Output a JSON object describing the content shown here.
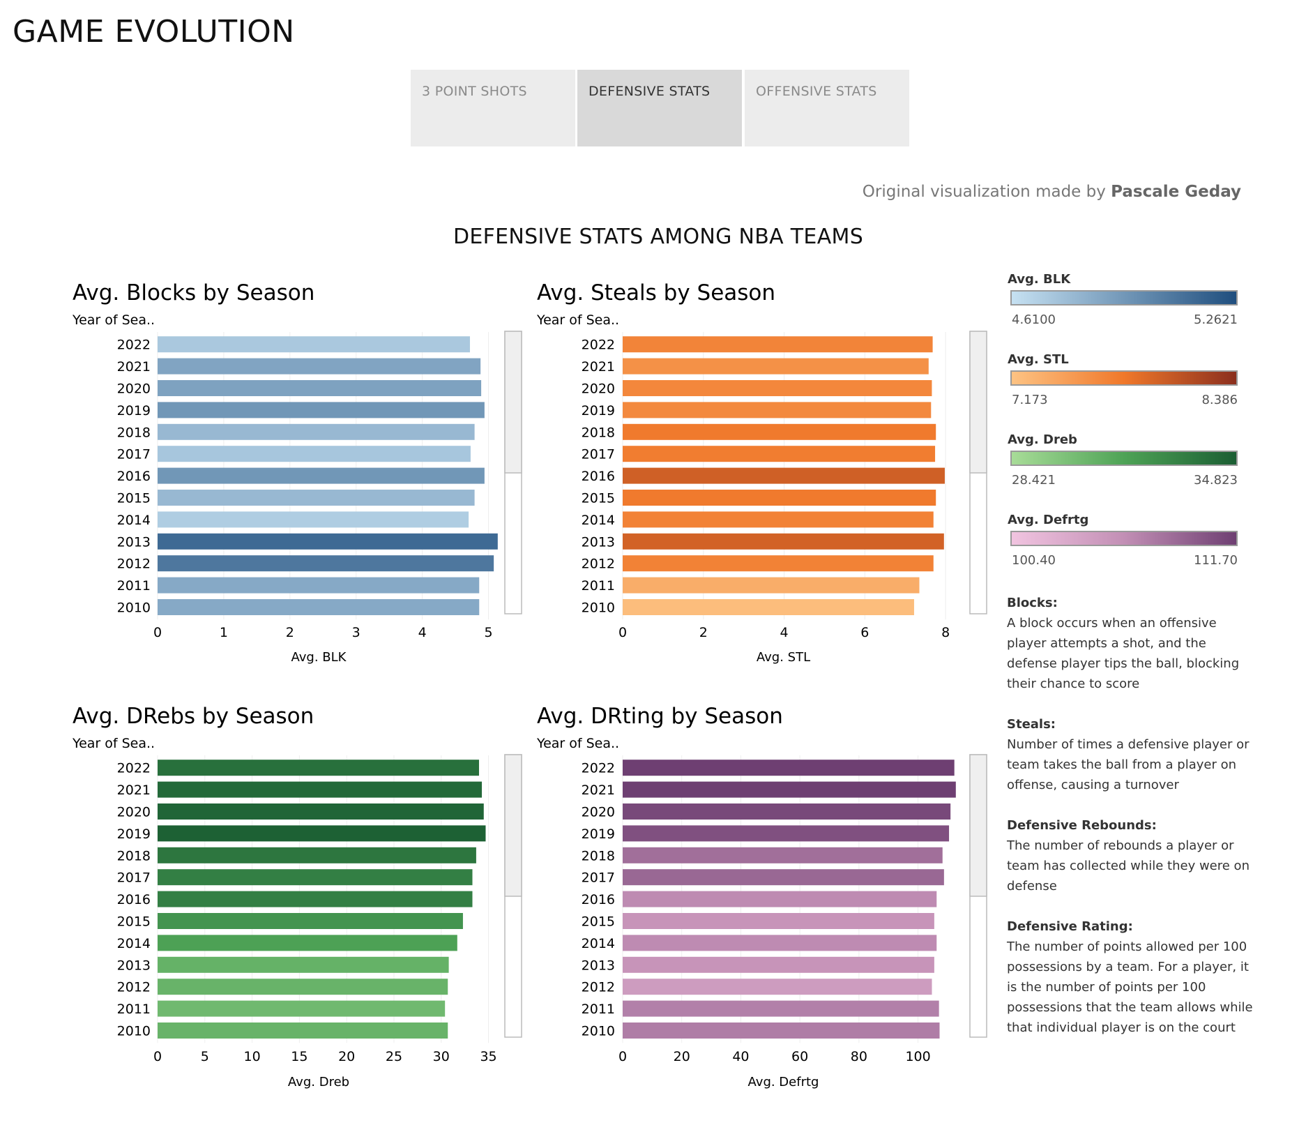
{
  "page": {
    "title": "GAME EVOLUTION",
    "credit_prefix": "Original visualization made by",
    "credit_author": "Pascale Geday",
    "dashboard_title": "DEFENSIVE STATS AMONG NBA TEAMS"
  },
  "tabs": [
    {
      "label": "3 POINT SHOTS",
      "active": false
    },
    {
      "label": "DEFENSIVE STATS",
      "active": true
    },
    {
      "label": "OFFENSIVE STATS",
      "active": false
    }
  ],
  "legends": [
    {
      "title": "Avg. BLK",
      "min": "4.6100",
      "max": "5.2621",
      "colors": [
        "#c6e1f2",
        "#1f4e7e"
      ]
    },
    {
      "title": "Avg. STL",
      "min": "7.173",
      "max": "8.386",
      "colors": [
        "#fdc383",
        "#f0782a",
        "#8b2f1e"
      ]
    },
    {
      "title": "Avg. Dreb",
      "min": "28.421",
      "max": "34.823",
      "colors": [
        "#a8dc98",
        "#4ea356",
        "#1b5e33"
      ]
    },
    {
      "title": "Avg. Defrtg",
      "min": "100.40",
      "max": "111.70",
      "colors": [
        "#f1c4e0",
        "#c28fb5",
        "#6e3f72"
      ]
    }
  ],
  "definitions": [
    {
      "term": "Blocks:",
      "text": "A block occurs when an offensive player attempts a shot, and the defense player tips the ball, blocking their chance to score"
    },
    {
      "term": "Steals:",
      "text": "Number of times a defensive player or team takes the ball from a player on offense, causing a turnover"
    },
    {
      "term": "Defensive Rebounds:",
      "text": "The number of rebounds a player or team has collected while they were on defense"
    },
    {
      "term": "Defensive Rating:",
      "text": "The number of points allowed per 100 possessions by a team. For a player, it is the number of points per 100 possessions that the team allows while that individual player is on the court"
    }
  ],
  "chart_data": [
    {
      "type": "bar",
      "orientation": "horizontal",
      "title": "Avg. Blocks by Season",
      "ylabel": "Year of Sea..",
      "xlabel": "Avg. BLK",
      "categories": [
        "2022",
        "2021",
        "2020",
        "2019",
        "2018",
        "2017",
        "2016",
        "2015",
        "2014",
        "2013",
        "2012",
        "2011",
        "2010"
      ],
      "values": [
        4.72,
        4.88,
        4.89,
        4.94,
        4.79,
        4.73,
        4.94,
        4.79,
        4.7,
        5.14,
        5.08,
        4.86,
        4.86
      ],
      "xlim": [
        0,
        5.5
      ],
      "xticks": [
        0,
        1,
        2,
        3,
        4,
        5
      ],
      "color_range": [
        4.61,
        5.2621
      ]
    },
    {
      "type": "bar",
      "orientation": "horizontal",
      "title": "Avg. Steals by Season",
      "ylabel": "Year of Sea..",
      "xlabel": "Avg. STL",
      "categories": [
        "2022",
        "2021",
        "2020",
        "2019",
        "2018",
        "2017",
        "2016",
        "2015",
        "2014",
        "2013",
        "2012",
        "2011",
        "2010"
      ],
      "values": [
        7.68,
        7.58,
        7.66,
        7.64,
        7.76,
        7.74,
        7.98,
        7.76,
        7.7,
        7.96,
        7.7,
        7.35,
        7.22
      ],
      "xlim": [
        0,
        9
      ],
      "xticks": [
        0,
        2,
        4,
        6,
        8
      ],
      "color_range": [
        7.173,
        8.386
      ]
    },
    {
      "type": "bar",
      "orientation": "horizontal",
      "title": "Avg. DRebs by Season",
      "ylabel": "Year of Sea..",
      "xlabel": "Avg. Dreb",
      "categories": [
        "2022",
        "2021",
        "2020",
        "2019",
        "2018",
        "2017",
        "2016",
        "2015",
        "2014",
        "2013",
        "2012",
        "2011",
        "2010"
      ],
      "values": [
        34.0,
        34.3,
        34.5,
        34.7,
        33.7,
        33.3,
        33.3,
        32.3,
        31.7,
        30.8,
        30.7,
        30.4,
        30.7
      ],
      "xlim": [
        0,
        38.5
      ],
      "xticks": [
        0,
        5,
        10,
        15,
        20,
        25,
        30,
        35
      ],
      "color_range": [
        28.421,
        34.823
      ]
    },
    {
      "type": "bar",
      "orientation": "horizontal",
      "title": "Avg. DRting by Season",
      "ylabel": "Year of Sea..",
      "xlabel": "Avg. Defrtg",
      "categories": [
        "2022",
        "2021",
        "2020",
        "2019",
        "2018",
        "2017",
        "2016",
        "2015",
        "2014",
        "2013",
        "2012",
        "2011",
        "2010"
      ],
      "values": [
        112.3,
        112.8,
        111.0,
        110.5,
        108.3,
        108.8,
        106.3,
        105.5,
        106.3,
        105.5,
        104.7,
        107.1,
        107.3
      ],
      "xlim": [
        0,
        123
      ],
      "xticks": [
        0,
        20,
        40,
        60,
        80,
        100
      ],
      "color_range": [
        100.4,
        111.7
      ]
    }
  ]
}
